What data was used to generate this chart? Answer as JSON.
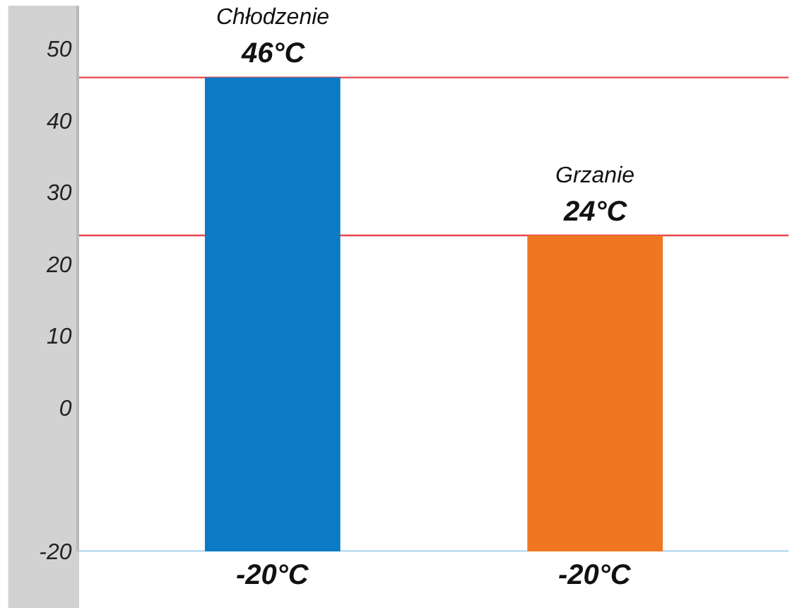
{
  "chart_data": {
    "type": "bar",
    "categories": [
      "Chłodzenie",
      "Grzanie"
    ],
    "base": [
      -20,
      -20
    ],
    "values": [
      66,
      44
    ],
    "colors": [
      "#0a7bc4",
      "#f07622"
    ],
    "ylim": [
      -20,
      56
    ],
    "yticks": [
      50,
      40,
      30,
      20,
      10,
      0,
      -20
    ],
    "grid": false,
    "ref_lines": [
      {
        "axis": "y",
        "value": 46,
        "color": "#e8474f"
      },
      {
        "axis": "y",
        "value": 24,
        "color": "#e8474f"
      },
      {
        "axis": "y",
        "value": -20,
        "color": "#7fbfe8"
      }
    ],
    "annotations": [
      {
        "text": "46°C",
        "x": "Chłodzenie",
        "y": 46
      },
      {
        "text": "-20°C",
        "x": "Chłodzenie",
        "y": -20
      },
      {
        "text": "24°C",
        "x": "Grzanie",
        "y": 24
      },
      {
        "text": "-20°C",
        "x": "Grzanie",
        "y": -20
      }
    ]
  }
}
